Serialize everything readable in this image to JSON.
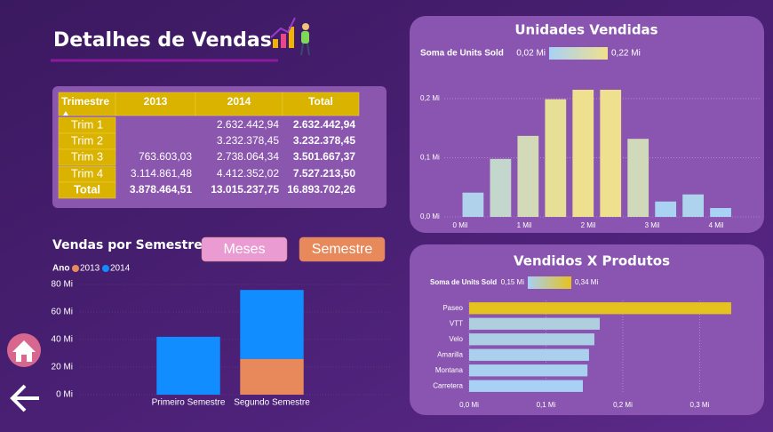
{
  "header": {
    "title": "Detalhes de Vendas"
  },
  "table": {
    "columns": [
      "Trimestre",
      "2013",
      "2014",
      "Total"
    ],
    "rows": [
      [
        "Trim 1",
        null,
        "2.632.442,94",
        "2.632.442,94"
      ],
      [
        "Trim 2",
        null,
        "3.232.378,45",
        "3.232.378,45"
      ],
      [
        "Trim 3",
        "763.603,03",
        "2.738.064,34",
        "3.501.667,37"
      ],
      [
        "Trim 4",
        "3.114.861,48",
        "4.412.352,02",
        "7.527.213,50"
      ]
    ],
    "total": [
      "Total",
      "3.878.464,51",
      "13.015.237,75",
      "16.893.702,26"
    ]
  },
  "buttons": [
    "Meses",
    "Semestre"
  ],
  "chart_data": [
    {
      "type": "bar",
      "title": "Unidades Vendidas",
      "legend_title": "Soma de Units Sold",
      "legend_range": [
        {
          "value": 0.02,
          "label": "0,02 Mi"
        },
        {
          "value": 0.22,
          "label": "0,22 Mi"
        }
      ],
      "color_min": "#a8d2f6",
      "color_max": "#f0e08c",
      "x": [
        0.2,
        0.63,
        1.06,
        1.49,
        1.92,
        2.35,
        2.78,
        3.21,
        3.64,
        4.07
      ],
      "values": [
        0.041,
        0.098,
        0.137,
        0.199,
        0.215,
        0.215,
        0.132,
        0.026,
        0.038,
        0.015
      ],
      "xlim": [
        -0.25,
        4.68
      ],
      "xticks": [
        {
          "value": 0,
          "label": "0 Mil"
        },
        {
          "value": 1,
          "label": "1 Mil"
        },
        {
          "value": 2,
          "label": "2 Mil"
        },
        {
          "value": 3,
          "label": "3 Mil"
        },
        {
          "value": 4,
          "label": "4 Mil"
        }
      ],
      "ylim": [
        0,
        0.23
      ],
      "yticks": [
        {
          "value": 0,
          "label": "0,0 Mi"
        },
        {
          "value": 0.1,
          "label": "0,1 Mi"
        },
        {
          "value": 0.2,
          "label": "0,2 Mi"
        }
      ],
      "grid": true
    },
    {
      "type": "barh",
      "title": "Vendidos X Produtos",
      "legend_title": "Soma de Units Sold",
      "legend_range": [
        {
          "value": 0.15,
          "label": "0,15 Mi"
        },
        {
          "value": 0.34,
          "label": "0,34 Mi"
        }
      ],
      "color_min": "#a9d0f5",
      "color_max": "#e6c21f",
      "categories": [
        "Paseo",
        "VTT",
        "Velo",
        "Amarilla",
        "Montana",
        "Carretera"
      ],
      "values": [
        0.341,
        0.17,
        0.163,
        0.156,
        0.154,
        0.148
      ],
      "xlim": [
        0,
        0.37
      ],
      "xticks": [
        {
          "value": 0,
          "label": "0,0 Mi"
        },
        {
          "value": 0.1,
          "label": "0,1 Mi"
        },
        {
          "value": 0.2,
          "label": "0,2 Mi"
        },
        {
          "value": 0.3,
          "label": "0,3 Mi"
        }
      ],
      "grid": true
    },
    {
      "type": "stacked_bar",
      "title": "Vendas por Semestre",
      "legend_title": "Ano",
      "categories": [
        "Primeiro Semestre",
        "Segundo Semestre"
      ],
      "series": [
        {
          "name": "2013",
          "color": "#e8895b",
          "values": [
            null,
            26
          ]
        },
        {
          "name": "2014",
          "color": "#118dff",
          "values": [
            42,
            50
          ]
        }
      ],
      "ylim": [
        0,
        80
      ],
      "yticks": [
        {
          "value": 0,
          "label": "0 Mi"
        },
        {
          "value": 20,
          "label": "20 Mi"
        },
        {
          "value": 40,
          "label": "40 Mi"
        },
        {
          "value": 60,
          "label": "60 Mi"
        },
        {
          "value": 80,
          "label": "80 Mi"
        }
      ],
      "grid": true
    }
  ]
}
